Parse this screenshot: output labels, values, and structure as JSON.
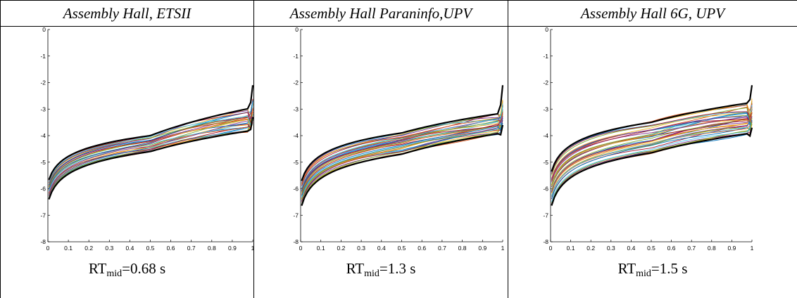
{
  "chart_data": [
    {
      "type": "line",
      "title": "Assembly Hall, ETSII",
      "caption": {
        "main": "RT",
        "sub": "mid",
        "rest": "=0.68 s"
      },
      "xlim": [
        0,
        1
      ],
      "ylim": [
        -8,
        0
      ],
      "xticks": [
        "0",
        "0.1",
        "0.2",
        "0.3",
        "0.4",
        "0.5",
        "0.6",
        "0.7",
        "0.8",
        "0.9",
        "1"
      ],
      "yticks": [
        "0",
        "-1",
        "-2",
        "-3",
        "-4",
        "-5",
        "-6",
        "-7",
        "-8"
      ],
      "grid": false,
      "envelope": {
        "upper": {
          "start": -5.8,
          "mid": -4.0,
          "end": -2.95,
          "tail": -2.1
        },
        "lower": {
          "start": -6.55,
          "mid": -4.6,
          "end": -3.8,
          "tail": -3.3
        }
      },
      "curve_count": 28
    },
    {
      "type": "line",
      "title": "Assembly Hall Paraninfo,UPV",
      "caption": {
        "main": "RT",
        "sub": "mid",
        "rest": "=1.3 s"
      },
      "xlim": [
        0,
        1
      ],
      "ylim": [
        -8,
        0
      ],
      "xticks": [
        "0",
        "0.1",
        "0.2",
        "0.3",
        "0.4",
        "0.5",
        "0.6",
        "0.7",
        "0.8",
        "0.9",
        "1"
      ],
      "yticks": [
        "0",
        "-1",
        "-2",
        "-3",
        "-4",
        "-5",
        "-6",
        "-7",
        "-8"
      ],
      "grid": false,
      "envelope": {
        "upper": {
          "start": -5.85,
          "mid": -3.9,
          "end": -3.15,
          "tail": -2.1
        },
        "lower": {
          "start": -6.8,
          "mid": -4.7,
          "end": -3.9,
          "tail": -3.6
        }
      },
      "curve_count": 34
    },
    {
      "type": "line",
      "title": "Assembly Hall 6G, UPV",
      "caption": {
        "main": "RT",
        "sub": "mid",
        "rest": "=1.5 s"
      },
      "xlim": [
        0,
        1
      ],
      "ylim": [
        -8,
        0
      ],
      "xticks": [
        "0",
        "0.1",
        "0.2",
        "0.3",
        "0.4",
        "0.5",
        "0.6",
        "0.7",
        "0.8",
        "0.9",
        "1"
      ],
      "yticks": [
        "0",
        "-1",
        "-2",
        "-3",
        "-4",
        "-5",
        "-6",
        "-7",
        "-8"
      ],
      "grid": false,
      "envelope": {
        "upper": {
          "start": -5.5,
          "mid": -3.5,
          "end": -2.75,
          "tail": -2.1
        },
        "lower": {
          "start": -6.8,
          "mid": -4.65,
          "end": -3.9,
          "tail": -3.7
        }
      },
      "curve_count": 38
    }
  ],
  "colors": [
    "#0072BD",
    "#D95319",
    "#EDB120",
    "#7E2F8E",
    "#77AC30",
    "#4DBEEE",
    "#A2142F"
  ],
  "envelope_color": "#000000"
}
